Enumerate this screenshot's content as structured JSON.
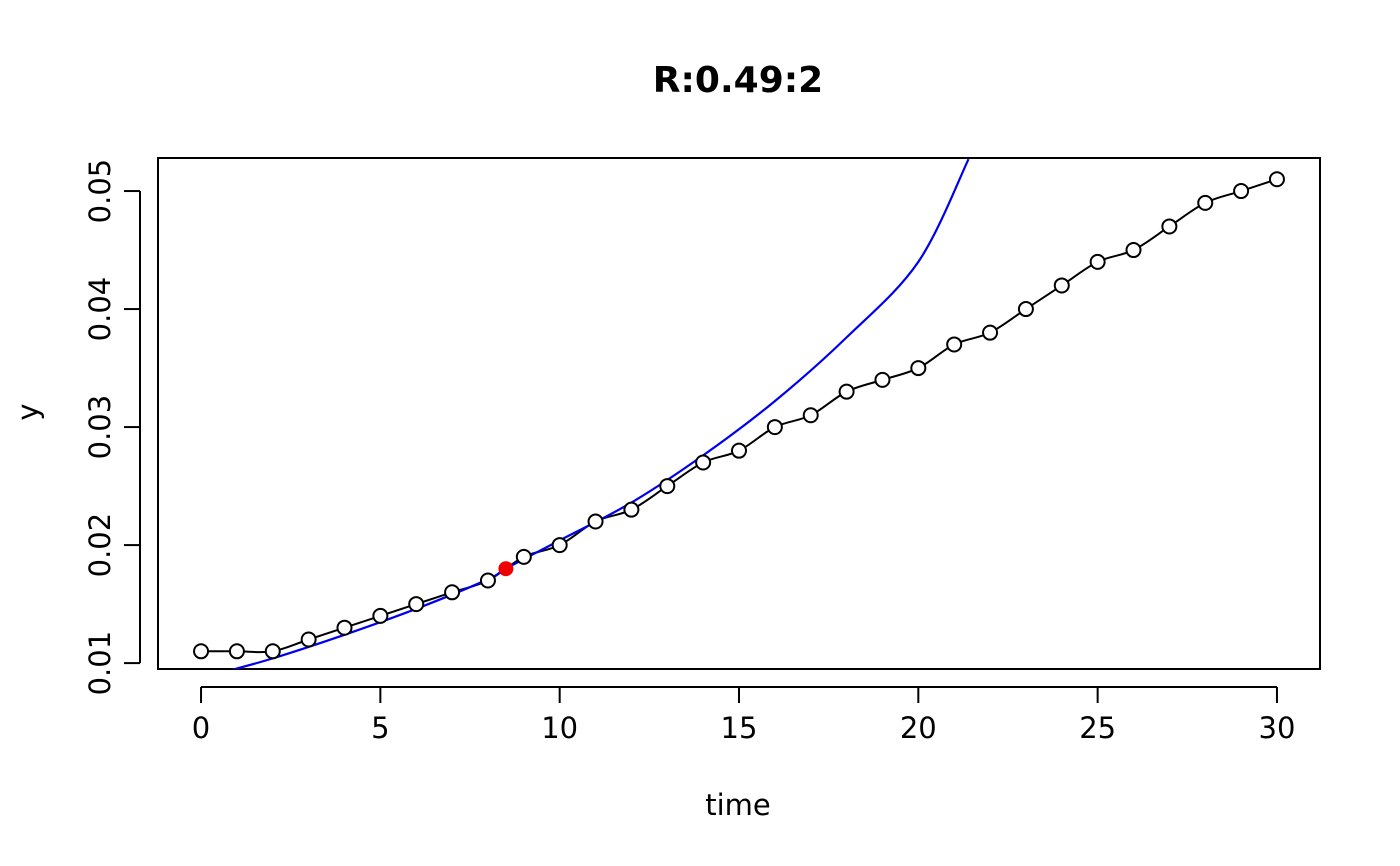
{
  "chart_data": {
    "type": "scatter",
    "title": "R:0.49:2",
    "xlabel": "time",
    "ylabel": "y",
    "xlim": [
      -1.2,
      31.2
    ],
    "ylim": [
      0.0095,
      0.0528
    ],
    "x_ticks": [
      0,
      5,
      10,
      15,
      20,
      25,
      30
    ],
    "y_ticks": [
      0.01,
      0.02,
      0.03,
      0.04,
      0.05
    ],
    "x_tick_labels": [
      "0",
      "5",
      "10",
      "15",
      "20",
      "25",
      "30"
    ],
    "y_tick_labels": [
      "0.01",
      "0.02",
      "0.03",
      "0.04",
      "0.05"
    ],
    "grid": false,
    "legend": "none",
    "series": [
      {
        "style": "points-with-line",
        "color": "#000000",
        "x": [
          0,
          1,
          2,
          3,
          4,
          5,
          6,
          7,
          8,
          9,
          10,
          11,
          12,
          13,
          14,
          15,
          16,
          17,
          18,
          19,
          20,
          21,
          22,
          23,
          24,
          25,
          26,
          27,
          28,
          29,
          30
        ],
        "y": [
          0.011,
          0.011,
          0.011,
          0.012,
          0.013,
          0.014,
          0.015,
          0.016,
          0.017,
          0.019,
          0.02,
          0.022,
          0.023,
          0.025,
          0.027,
          0.028,
          0.03,
          0.031,
          0.033,
          0.034,
          0.035,
          0.037,
          0.038,
          0.04,
          0.042,
          0.044,
          0.045,
          0.047,
          0.049,
          0.05,
          0.051
        ]
      },
      {
        "style": "curve",
        "color": "#0000ee",
        "x": [
          0.7,
          2,
          4,
          6,
          8,
          8.5,
          10,
          12,
          14,
          16,
          18,
          20,
          21.4
        ],
        "y": [
          0.0093,
          0.0104,
          0.0124,
          0.0146,
          0.0171,
          0.018,
          0.0204,
          0.0236,
          0.0276,
          0.0322,
          0.0376,
          0.044,
          0.0527
        ]
      }
    ],
    "highlight_point": {
      "x": 8.5,
      "y": 0.018,
      "color": "#ee0000"
    }
  }
}
